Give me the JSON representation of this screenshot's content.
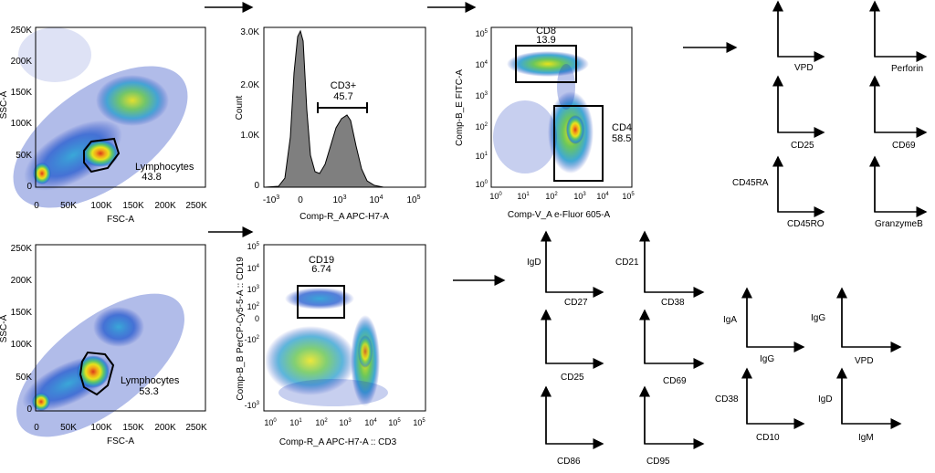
{
  "plots": [
    {
      "id": "fsc-ssc-top",
      "type": "density",
      "x_label": "FSC-A",
      "y_label": "SSC-A",
      "x_ticks": [
        "0",
        "50K",
        "100K",
        "150K",
        "200K",
        "250K"
      ],
      "y_ticks": [
        "0",
        "50K",
        "100K",
        "150K",
        "200K",
        "250K"
      ],
      "gate": {
        "name": "Lymphocytes",
        "value": "43.8"
      }
    },
    {
      "id": "fsc-ssc-bottom",
      "type": "density",
      "x_label": "FSC-A",
      "y_label": "SSC-A",
      "x_ticks": [
        "0",
        "50K",
        "100K",
        "150K",
        "200K",
        "250K"
      ],
      "y_ticks": [
        "0",
        "50K",
        "100K",
        "150K",
        "200K",
        "250K"
      ],
      "gate": {
        "name": "Lymphocytes",
        "value": "53.3"
      }
    },
    {
      "id": "cd3-histogram",
      "type": "histogram",
      "x_label": "Comp-R_A APC-H7-A",
      "y_label": "Count",
      "y_ticks": [
        "0",
        "1.0K",
        "2.0K",
        "3.0K"
      ],
      "gate": {
        "name": "CD3+",
        "value": "45.7"
      }
    },
    {
      "id": "cd8-cd4",
      "type": "density",
      "x_label": "Comp-V_A e-Fluor 605-A",
      "y_label": "Comp-B_E FITC-A",
      "gates": [
        {
          "name": "CD8",
          "value": "13.9"
        },
        {
          "name": "CD4",
          "value": "58.5"
        }
      ]
    },
    {
      "id": "cd19-cd3",
      "type": "density",
      "x_label": "Comp-R_A APC-H7-A :: CD3",
      "y_label": "Comp-B_B PerCP-Cy5-5-A :: CD19",
      "gate": {
        "name": "CD19",
        "value": "6.74"
      }
    }
  ],
  "axis_labels": {
    "t_vpd": "VPD",
    "t_perforin": "Perforin",
    "t_cd25": "CD25",
    "t_cd69": "CD69",
    "t_cd45ra": "CD45RA",
    "t_cd45ro": "CD45RO",
    "t_granzymeb": "GranzymeB",
    "b_igd": "IgD",
    "b_cd27": "CD27",
    "b_cd21": "CD21",
    "b_cd38": "CD38",
    "b_cd25": "CD25",
    "b_cd69": "CD69",
    "b_cd86": "CD86",
    "b_cd95": "CD95",
    "b_iga": "IgA",
    "b_igg_x": "IgG",
    "b_igg_y": "IgG",
    "b_vpd": "VPD",
    "b_cd38_y": "CD38",
    "b_cd10": "CD10",
    "b_igd_y": "IgD",
    "b_igm": "IgM"
  },
  "colors": {
    "low": "#1f3fbf",
    "mid": "#22b3a6",
    "high": "#f2e21b",
    "peak": "#d93a1a",
    "hist_fill": "#7f7f7f"
  }
}
